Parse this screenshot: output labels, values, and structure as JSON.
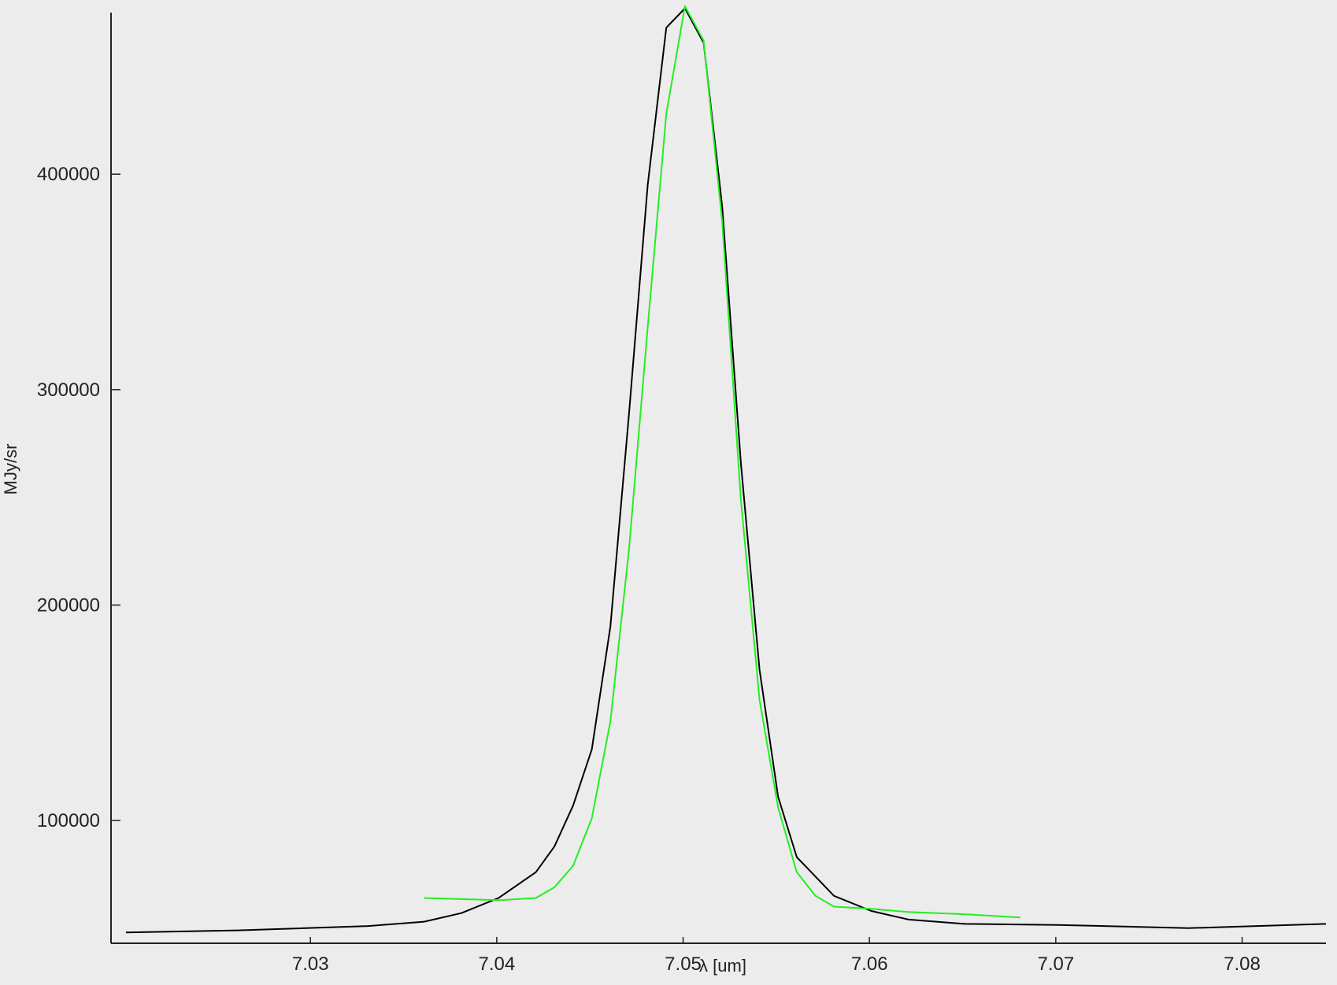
{
  "chart_data": {
    "type": "line",
    "title": "",
    "xlabel": "λ [um]",
    "ylabel": "MJy/sr",
    "xlim": [
      7.0193,
      7.0845
    ],
    "ylim": [
      43000,
      475000
    ],
    "grid": false,
    "x_ticks": [
      {
        "value": 7.03,
        "label": "7.03"
      },
      {
        "value": 7.04,
        "label": "7.04"
      },
      {
        "value": 7.05,
        "label": "7.05"
      },
      {
        "value": 7.06,
        "label": "7.06"
      },
      {
        "value": 7.07,
        "label": "7.07"
      },
      {
        "value": 7.08,
        "label": "7.08"
      }
    ],
    "y_ticks": [
      {
        "value": 100000,
        "label": "100000"
      },
      {
        "value": 200000,
        "label": "200000"
      },
      {
        "value": 300000,
        "label": "300000"
      },
      {
        "value": 400000,
        "label": "400000"
      }
    ],
    "series": [
      {
        "color": "#000000",
        "x": [
          7.0201,
          7.0261,
          7.0331,
          7.0361,
          7.0381,
          7.0401,
          7.0421,
          7.0431,
          7.0441,
          7.0451,
          7.0461,
          7.0471,
          7.0481,
          7.0491,
          7.0501,
          7.0511,
          7.0521,
          7.0531,
          7.0541,
          7.0551,
          7.0561,
          7.0581,
          7.0601,
          7.0621,
          7.0651,
          7.0701,
          7.0771,
          7.0845
        ],
        "y": [
          48000,
          49000,
          51000,
          53000,
          57000,
          64000,
          76000,
          88000,
          107000,
          133000,
          190000,
          289000,
          395000,
          468000,
          477000,
          461000,
          385000,
          266000,
          170000,
          111000,
          83000,
          65000,
          58000,
          54000,
          52000,
          51500,
          50000,
          52000
        ]
      },
      {
        "color": "#22ee22",
        "x": [
          7.0361,
          7.0381,
          7.0401,
          7.0421,
          7.0431,
          7.0441,
          7.0451,
          7.0461,
          7.0471,
          7.0481,
          7.0491,
          7.0501,
          7.0511,
          7.0521,
          7.0531,
          7.0541,
          7.0551,
          7.0561,
          7.0571,
          7.0581,
          7.0601,
          7.0621,
          7.0651,
          7.0681
        ],
        "y": [
          64000,
          63500,
          63000,
          64000,
          69000,
          79000,
          101000,
          146000,
          226000,
          329000,
          428000,
          478000,
          462000,
          378000,
          249000,
          156000,
          106000,
          76000,
          65000,
          60000,
          59000,
          57500,
          56500,
          55000
        ]
      }
    ]
  }
}
